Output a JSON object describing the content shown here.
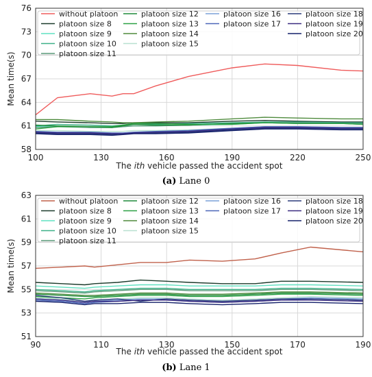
{
  "chart_data": [
    {
      "type": "line",
      "caption_label": "(a)",
      "caption_text": "Lane 0",
      "xlabel_prefix": "The ",
      "xlabel_italic": "ith",
      "xlabel_suffix": " vehicle passed the accident spot",
      "ylabel": "Mean time(s)",
      "xlim": [
        100,
        250
      ],
      "ylim": [
        58,
        76
      ],
      "xticks": [
        100,
        130,
        160,
        190,
        220,
        250
      ],
      "yticks": [
        58,
        61,
        64,
        67,
        70,
        73,
        76
      ],
      "ytick_labels": [
        "58",
        "61",
        "64",
        "67",
        "70",
        "73",
        "76"
      ],
      "grid": true,
      "legend_position": "top-left",
      "x": [
        100,
        110,
        125,
        135,
        140,
        145,
        155,
        170,
        190,
        205,
        220,
        240,
        250
      ],
      "series": [
        {
          "name": "without platoon",
          "color": "#ef5b5b",
          "values": [
            62.4,
            64.6,
            65.1,
            64.8,
            65.1,
            65.1,
            66.1,
            67.3,
            68.4,
            68.9,
            68.7,
            68.1,
            68.0
          ]
        },
        {
          "name": "platoon size 8",
          "color": "#1a3a2a",
          "values": [
            61.6,
            61.5,
            61.4,
            61.3,
            61.3,
            61.4,
            61.4,
            61.4,
            61.6,
            61.7,
            61.6,
            61.5,
            61.5
          ]
        },
        {
          "name": "platoon size 9",
          "color": "#5fe0c0",
          "values": [
            60.9,
            61.0,
            60.8,
            60.8,
            60.9,
            61.0,
            61.0,
            61.1,
            61.2,
            61.4,
            61.4,
            61.3,
            61.3
          ]
        },
        {
          "name": "platoon size 10",
          "color": "#3cb087",
          "values": [
            61.0,
            61.2,
            61.1,
            61.0,
            61.1,
            61.2,
            61.2,
            61.3,
            61.4,
            61.5,
            61.5,
            61.4,
            61.4
          ]
        },
        {
          "name": "platoon size 11",
          "color": "#5a9a7a",
          "values": [
            60.8,
            60.9,
            60.8,
            60.8,
            60.9,
            61.0,
            61.0,
            61.1,
            61.3,
            61.4,
            61.4,
            61.3,
            61.3
          ]
        },
        {
          "name": "platoon size 12",
          "color": "#1f8a3a",
          "values": [
            61.1,
            61.0,
            60.9,
            60.8,
            61.0,
            61.2,
            61.1,
            61.1,
            61.3,
            61.4,
            61.3,
            61.3,
            61.2
          ]
        },
        {
          "name": "platoon size 13",
          "color": "#2aa043",
          "values": [
            60.6,
            60.9,
            60.9,
            60.9,
            61.1,
            61.3,
            61.3,
            61.2,
            61.2,
            61.4,
            61.3,
            61.3,
            61.2
          ]
        },
        {
          "name": "platoon size 14",
          "color": "#4e8a3c",
          "values": [
            61.8,
            61.8,
            61.6,
            61.5,
            61.4,
            61.4,
            61.5,
            61.6,
            61.9,
            62.1,
            62.0,
            61.9,
            61.9
          ]
        },
        {
          "name": "platoon size 15",
          "color": "#b8e0d0",
          "values": [
            60.4,
            60.4,
            60.3,
            60.3,
            60.3,
            60.4,
            60.4,
            60.5,
            60.7,
            60.9,
            60.9,
            60.8,
            60.8
          ]
        },
        {
          "name": "platoon size 16",
          "color": "#7aa0d8",
          "values": [
            60.2,
            60.1,
            60.0,
            60.0,
            60.0,
            60.1,
            60.2,
            60.3,
            60.6,
            60.8,
            60.8,
            60.7,
            60.7
          ]
        },
        {
          "name": "platoon size 17",
          "color": "#4a66b8",
          "values": [
            60.3,
            60.2,
            60.2,
            60.1,
            60.1,
            60.2,
            60.3,
            60.4,
            60.7,
            60.9,
            60.9,
            60.8,
            60.8
          ]
        },
        {
          "name": "platoon size 18",
          "color": "#2a3a7a",
          "values": [
            60.1,
            60.0,
            60.0,
            59.9,
            60.0,
            60.1,
            60.1,
            60.2,
            60.5,
            60.7,
            60.7,
            60.6,
            60.6
          ]
        },
        {
          "name": "platoon size 19",
          "color": "#3a2a80",
          "values": [
            60.2,
            60.1,
            60.1,
            60.0,
            60.0,
            60.1,
            60.2,
            60.3,
            60.6,
            60.8,
            60.8,
            60.7,
            60.7
          ]
        },
        {
          "name": "platoon size 20",
          "color": "#14206a",
          "values": [
            60.0,
            59.9,
            59.9,
            59.8,
            59.9,
            60.0,
            60.0,
            60.1,
            60.4,
            60.6,
            60.6,
            60.5,
            60.5
          ]
        }
      ]
    },
    {
      "type": "line",
      "caption_label": "(b)",
      "caption_text": "Lane 1",
      "xlabel_prefix": "The ",
      "xlabel_italic": "ith",
      "xlabel_suffix": " vehicle passed the accident spot",
      "ylabel": "Mean time(s)",
      "xlim": [
        90,
        190
      ],
      "ylim": [
        51,
        63
      ],
      "xticks": [
        90,
        110,
        130,
        150,
        170,
        190
      ],
      "yticks": [
        51,
        53,
        55,
        57,
        59,
        61,
        63
      ],
      "ytick_labels": [
        "51",
        "53",
        "55",
        "57",
        "59",
        "61",
        "63"
      ],
      "grid": true,
      "legend_position": "top-left",
      "x": [
        90,
        98,
        105,
        108,
        115,
        122,
        130,
        137,
        147,
        157,
        165,
        174,
        190
      ],
      "series": [
        {
          "name": "without platoon",
          "color": "#c0604a",
          "values": [
            56.8,
            56.9,
            57.0,
            56.9,
            57.1,
            57.3,
            57.3,
            57.5,
            57.4,
            57.6,
            58.1,
            58.6,
            58.2
          ]
        },
        {
          "name": "platoon size 8",
          "color": "#1a3a2a",
          "values": [
            55.6,
            55.5,
            55.4,
            55.5,
            55.6,
            55.8,
            55.7,
            55.6,
            55.5,
            55.5,
            55.7,
            55.7,
            55.6
          ]
        },
        {
          "name": "platoon size 9",
          "color": "#5fe0c0",
          "values": [
            55.3,
            55.2,
            55.1,
            55.2,
            55.3,
            55.4,
            55.4,
            55.3,
            55.3,
            55.3,
            55.4,
            55.4,
            55.3
          ]
        },
        {
          "name": "platoon size 10",
          "color": "#3cb087",
          "values": [
            55.0,
            54.9,
            54.8,
            54.9,
            55.0,
            55.1,
            55.1,
            55.0,
            55.0,
            55.0,
            55.1,
            55.1,
            55.0
          ]
        },
        {
          "name": "platoon size 11",
          "color": "#5a9a7a",
          "values": [
            54.9,
            54.8,
            54.7,
            54.8,
            54.9,
            55.0,
            55.0,
            54.9,
            54.9,
            54.9,
            55.0,
            55.0,
            54.9
          ]
        },
        {
          "name": "platoon size 12",
          "color": "#1f8a3a",
          "values": [
            54.6,
            54.5,
            54.4,
            54.4,
            54.5,
            54.6,
            54.6,
            54.5,
            54.5,
            54.6,
            54.7,
            54.7,
            54.6
          ]
        },
        {
          "name": "platoon size 13",
          "color": "#2aa043",
          "values": [
            54.4,
            54.3,
            54.2,
            54.3,
            54.4,
            54.5,
            54.5,
            54.4,
            54.4,
            54.5,
            54.6,
            54.6,
            54.5
          ]
        },
        {
          "name": "platoon size 14",
          "color": "#4e8a3c",
          "values": [
            54.7,
            54.6,
            54.5,
            54.5,
            54.6,
            54.7,
            54.7,
            54.6,
            54.6,
            54.7,
            54.8,
            54.8,
            54.7
          ]
        },
        {
          "name": "platoon size 15",
          "color": "#b8e0d0",
          "values": [
            54.3,
            54.2,
            54.0,
            54.1,
            54.2,
            54.3,
            54.3,
            54.2,
            54.1,
            54.2,
            54.3,
            54.4,
            54.3
          ]
        },
        {
          "name": "platoon size 16",
          "color": "#7aa0d8",
          "values": [
            54.2,
            54.1,
            53.9,
            54.0,
            54.1,
            54.2,
            54.2,
            54.1,
            54.0,
            54.1,
            54.2,
            54.3,
            54.2
          ]
        },
        {
          "name": "platoon size 17",
          "color": "#4a66b8",
          "values": [
            54.1,
            54.0,
            53.8,
            53.9,
            54.0,
            54.1,
            54.1,
            54.0,
            53.9,
            54.0,
            54.1,
            54.2,
            54.1
          ]
        },
        {
          "name": "platoon size 18",
          "color": "#2a3a7a",
          "values": [
            54.5,
            54.3,
            54.0,
            54.1,
            54.2,
            54.0,
            54.2,
            54.1,
            54.0,
            54.1,
            54.2,
            54.2,
            54.1
          ]
        },
        {
          "name": "platoon size 19",
          "color": "#3a2a80",
          "values": [
            54.2,
            54.1,
            53.9,
            54.0,
            54.0,
            54.1,
            54.1,
            54.0,
            53.9,
            54.0,
            54.1,
            54.1,
            54.0
          ]
        },
        {
          "name": "platoon size 20",
          "color": "#14206a",
          "values": [
            54.0,
            53.9,
            53.7,
            53.8,
            53.8,
            53.9,
            53.9,
            53.8,
            53.7,
            53.8,
            53.9,
            53.9,
            53.8
          ]
        }
      ]
    }
  ]
}
